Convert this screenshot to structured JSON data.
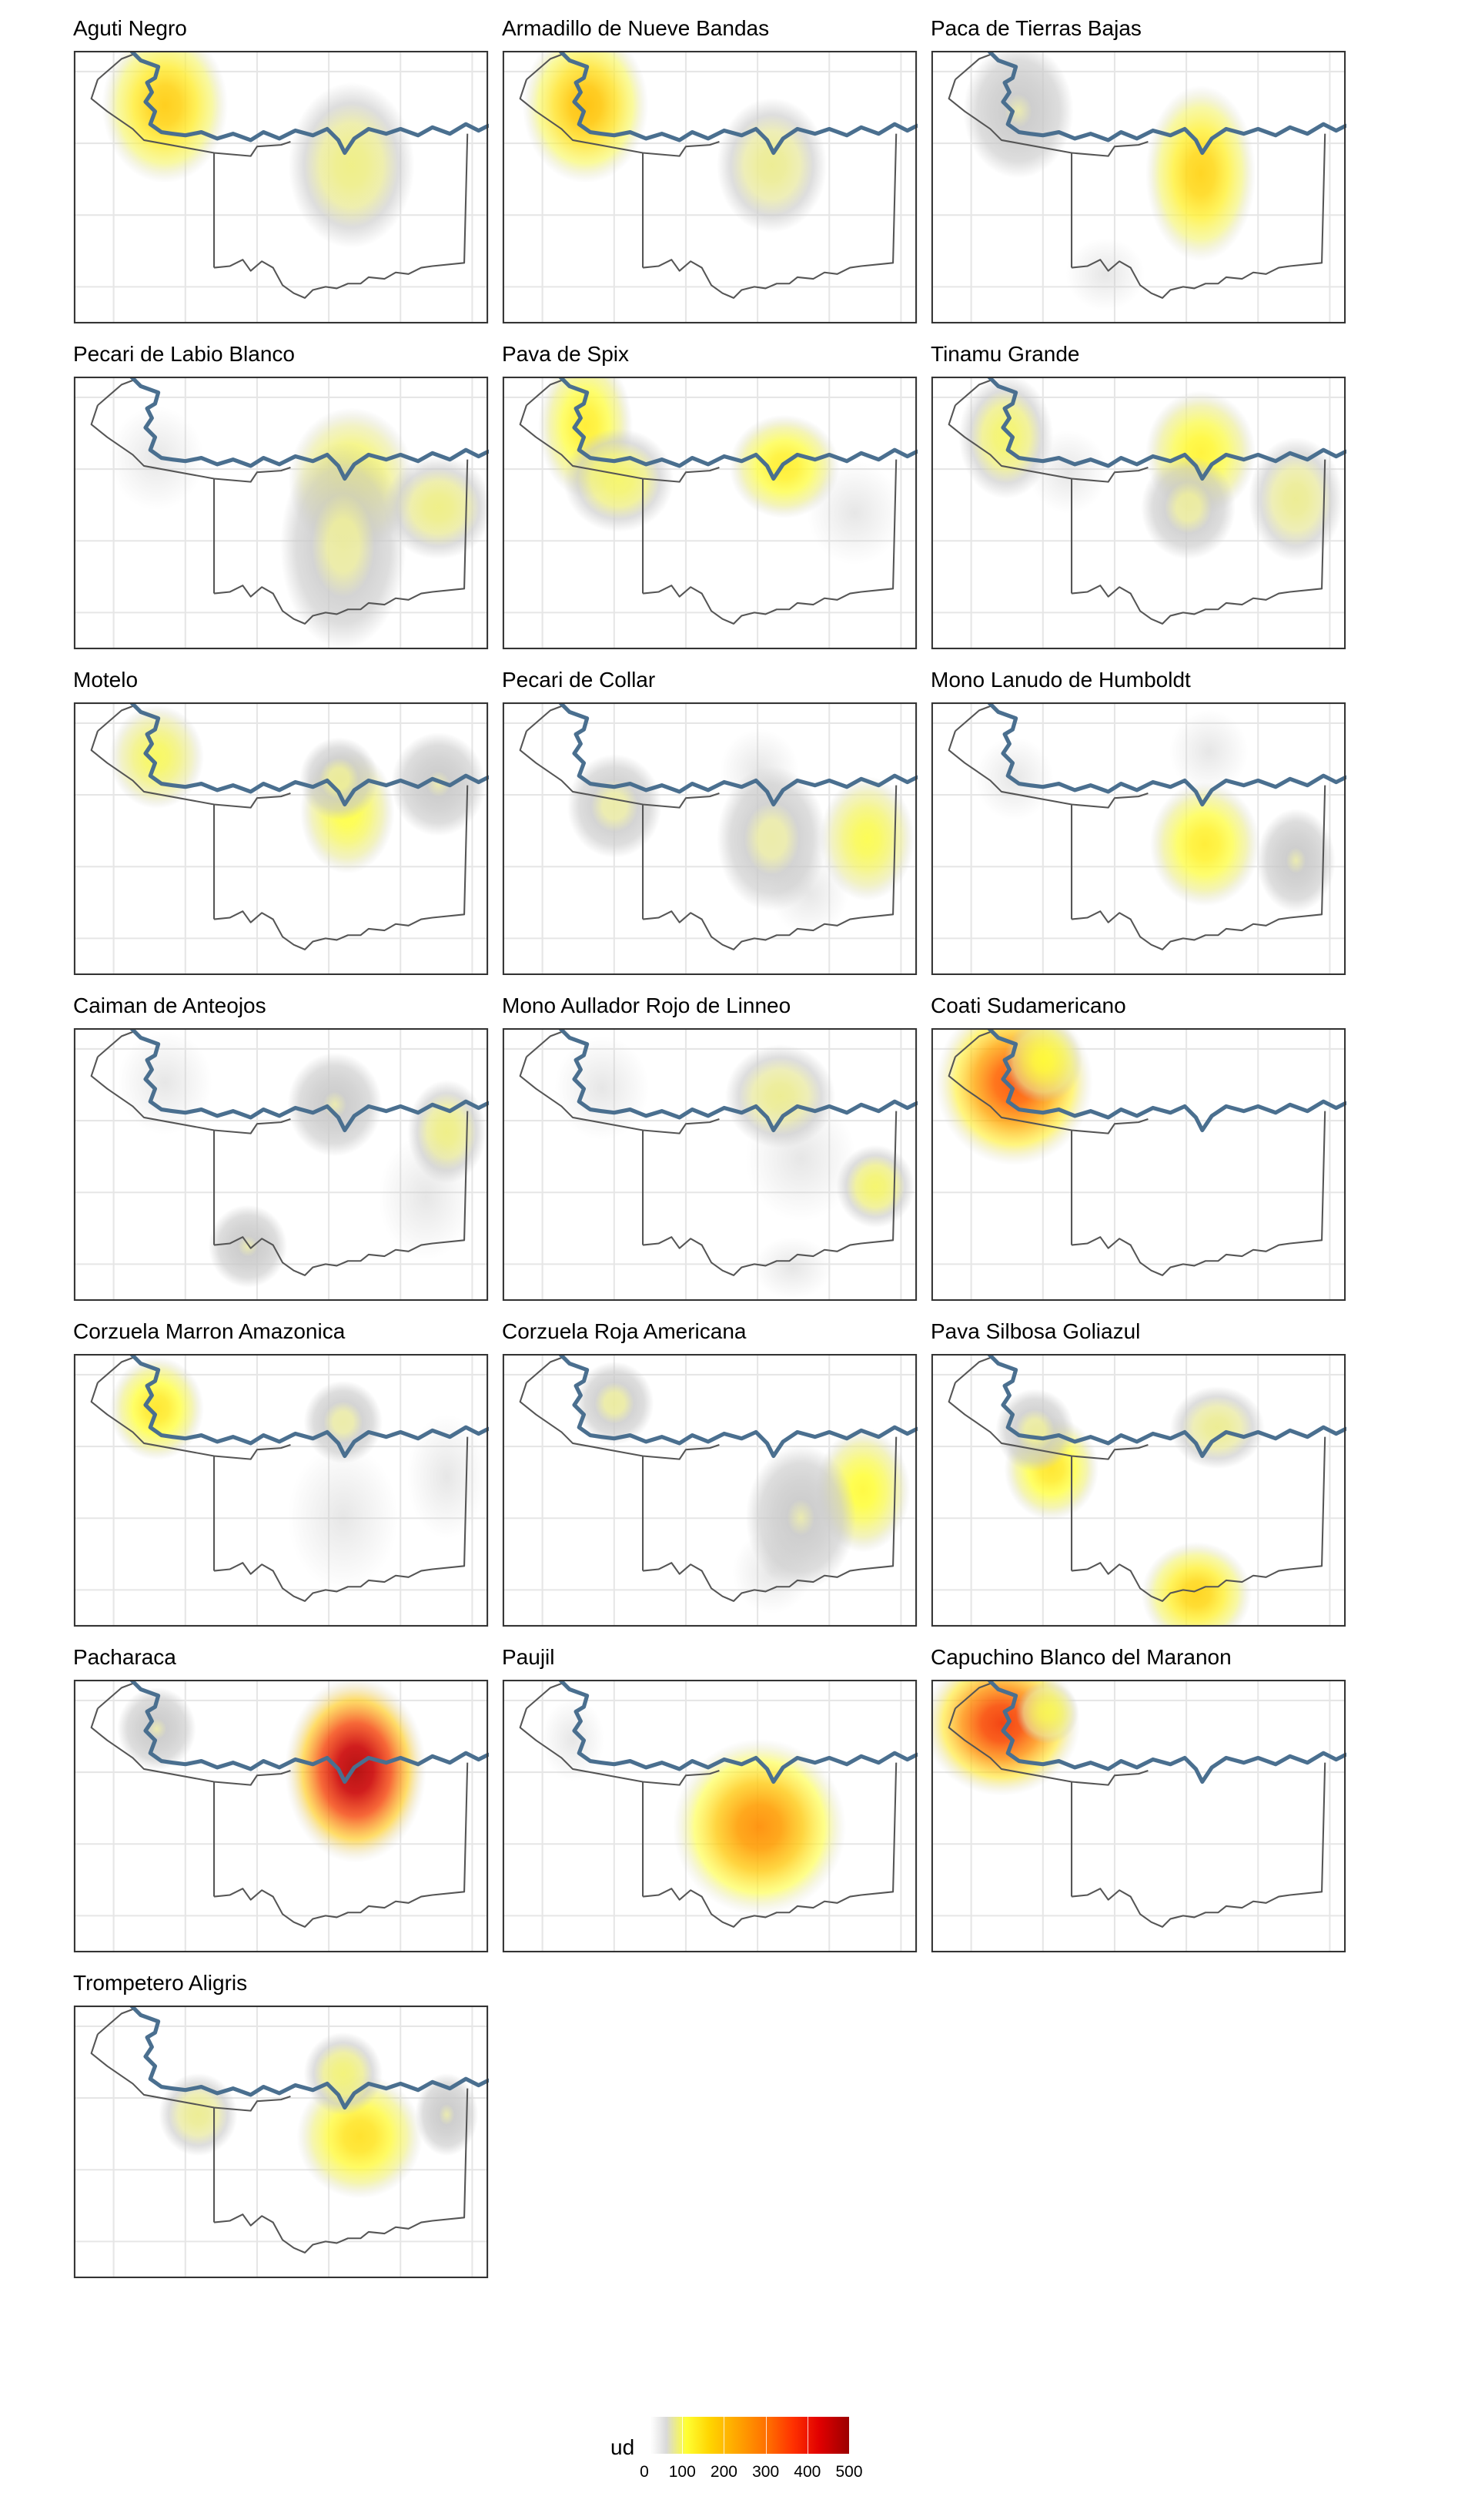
{
  "chart_data": {
    "type": "heatmap",
    "description": "Faceted kernel-density heat maps of species observations over a regional map with river and district boundaries",
    "color_scale": {
      "title": "ud",
      "ticks": [
        "0",
        "100",
        "200",
        "300",
        "400",
        "500"
      ],
      "range": [
        0,
        500
      ],
      "colors": [
        "#ffffff",
        "#d9d9d9",
        "#ffff33",
        "#ffa000",
        "#ff3000",
        "#9b0000"
      ]
    },
    "river_color": "#4a6f8f",
    "boundary_color": "#555555",
    "facets": [
      {
        "title": "Aguti Negro",
        "hotspots": [
          [
            0.22,
            0.2,
            0.08,
            0.15,
            200
          ],
          [
            0.67,
            0.42,
            0.08,
            0.16,
            70
          ]
        ]
      },
      {
        "title": "Armadillo de Nueve Bandas",
        "hotspots": [
          [
            0.2,
            0.2,
            0.08,
            0.15,
            220
          ],
          [
            0.65,
            0.42,
            0.07,
            0.13,
            60
          ]
        ]
      },
      {
        "title": "Paca de Tierras Bajas",
        "hotspots": [
          [
            0.65,
            0.45,
            0.07,
            0.17,
            190
          ],
          [
            0.21,
            0.22,
            0.07,
            0.13,
            40
          ],
          [
            0.42,
            0.82,
            0.05,
            0.07,
            20
          ]
        ]
      },
      {
        "title": "Pecari de Labio Blanco",
        "hotspots": [
          [
            0.67,
            0.38,
            0.08,
            0.14,
            110
          ],
          [
            0.88,
            0.48,
            0.07,
            0.1,
            70
          ],
          [
            0.65,
            0.62,
            0.08,
            0.2,
            50
          ],
          [
            0.2,
            0.3,
            0.06,
            0.1,
            15
          ]
        ]
      },
      {
        "title": "Pava de Spix",
        "hotspots": [
          [
            0.2,
            0.18,
            0.06,
            0.14,
            150
          ],
          [
            0.28,
            0.38,
            0.07,
            0.1,
            90
          ],
          [
            0.68,
            0.33,
            0.07,
            0.1,
            150
          ],
          [
            0.85,
            0.5,
            0.06,
            0.1,
            25
          ]
        ]
      },
      {
        "title": "Tinamu Grande",
        "hotspots": [
          [
            0.18,
            0.22,
            0.06,
            0.12,
            90
          ],
          [
            0.65,
            0.28,
            0.07,
            0.12,
            140
          ],
          [
            0.62,
            0.48,
            0.06,
            0.1,
            50
          ],
          [
            0.88,
            0.45,
            0.06,
            0.12,
            60
          ],
          [
            0.33,
            0.35,
            0.05,
            0.08,
            30
          ]
        ]
      },
      {
        "title": "Motelo",
        "hotspots": [
          [
            0.2,
            0.2,
            0.06,
            0.1,
            100
          ],
          [
            0.66,
            0.4,
            0.06,
            0.12,
            120
          ],
          [
            0.64,
            0.28,
            0.05,
            0.08,
            50
          ],
          [
            0.88,
            0.3,
            0.06,
            0.1,
            40
          ]
        ]
      },
      {
        "title": "Pecari de Collar",
        "hotspots": [
          [
            0.88,
            0.5,
            0.06,
            0.12,
            110
          ],
          [
            0.65,
            0.5,
            0.07,
            0.14,
            45
          ],
          [
            0.27,
            0.38,
            0.06,
            0.1,
            45
          ],
          [
            0.62,
            0.25,
            0.05,
            0.08,
            25
          ],
          [
            0.74,
            0.7,
            0.05,
            0.08,
            15
          ]
        ]
      },
      {
        "title": "Mono Lanudo de Humboldt",
        "hotspots": [
          [
            0.66,
            0.52,
            0.07,
            0.12,
            150
          ],
          [
            0.88,
            0.58,
            0.05,
            0.1,
            40
          ],
          [
            0.67,
            0.18,
            0.05,
            0.08,
            25
          ],
          [
            0.2,
            0.28,
            0.05,
            0.08,
            15
          ]
        ]
      },
      {
        "title": "Caiman de Anteojos",
        "hotspots": [
          [
            0.9,
            0.38,
            0.05,
            0.1,
            70
          ],
          [
            0.63,
            0.28,
            0.06,
            0.1,
            40
          ],
          [
            0.85,
            0.62,
            0.06,
            0.12,
            35
          ],
          [
            0.22,
            0.2,
            0.06,
            0.1,
            30
          ],
          [
            0.42,
            0.8,
            0.05,
            0.08,
            40
          ]
        ]
      },
      {
        "title": "Mono Aullador Rojo de Linneo",
        "hotspots": [
          [
            0.9,
            0.58,
            0.05,
            0.08,
            90
          ],
          [
            0.67,
            0.25,
            0.07,
            0.1,
            60
          ],
          [
            0.72,
            0.48,
            0.07,
            0.12,
            35
          ],
          [
            0.24,
            0.22,
            0.06,
            0.1,
            25
          ],
          [
            0.7,
            0.88,
            0.05,
            0.06,
            25
          ]
        ]
      },
      {
        "title": "Coati Sudamericano",
        "hotspots": [
          [
            0.2,
            0.2,
            0.1,
            0.16,
            330
          ],
          [
            0.27,
            0.12,
            0.05,
            0.08,
            120
          ]
        ]
      },
      {
        "title": "Corzuela Marron Amazonica",
        "hotspots": [
          [
            0.2,
            0.2,
            0.06,
            0.1,
            160
          ],
          [
            0.65,
            0.25,
            0.05,
            0.08,
            45
          ],
          [
            0.65,
            0.6,
            0.07,
            0.14,
            30
          ],
          [
            0.9,
            0.45,
            0.05,
            0.12,
            35
          ]
        ]
      },
      {
        "title": "Corzuela Roja Americana",
        "hotspots": [
          [
            0.87,
            0.5,
            0.06,
            0.12,
            130
          ],
          [
            0.27,
            0.18,
            0.05,
            0.08,
            50
          ],
          [
            0.72,
            0.6,
            0.07,
            0.14,
            40
          ],
          [
            0.65,
            0.8,
            0.05,
            0.08,
            20
          ]
        ]
      },
      {
        "title": "Pava Silbosa Goliazul",
        "hotspots": [
          [
            0.29,
            0.42,
            0.06,
            0.1,
            160
          ],
          [
            0.64,
            0.88,
            0.07,
            0.1,
            190
          ],
          [
            0.69,
            0.27,
            0.06,
            0.08,
            60
          ],
          [
            0.25,
            0.28,
            0.05,
            0.08,
            50
          ]
        ]
      },
      {
        "title": "Pacharaca",
        "hotspots": [
          [
            0.68,
            0.33,
            0.09,
            0.18,
            470
          ],
          [
            0.2,
            0.18,
            0.05,
            0.08,
            40
          ]
        ]
      },
      {
        "title": "Paujil",
        "hotspots": [
          [
            0.62,
            0.54,
            0.11,
            0.17,
            270
          ],
          [
            0.17,
            0.22,
            0.04,
            0.08,
            15
          ]
        ]
      },
      {
        "title": "Capuchino Blanco del Maranon",
        "hotspots": [
          [
            0.17,
            0.16,
            0.1,
            0.14,
            360
          ],
          [
            0.28,
            0.12,
            0.04,
            0.06,
            100
          ]
        ]
      },
      {
        "title": "Trompetero Aligris",
        "hotspots": [
          [
            0.69,
            0.48,
            0.08,
            0.12,
            170
          ],
          [
            0.65,
            0.25,
            0.05,
            0.08,
            80
          ],
          [
            0.3,
            0.4,
            0.05,
            0.08,
            60
          ],
          [
            0.9,
            0.4,
            0.04,
            0.08,
            40
          ]
        ]
      }
    ]
  }
}
